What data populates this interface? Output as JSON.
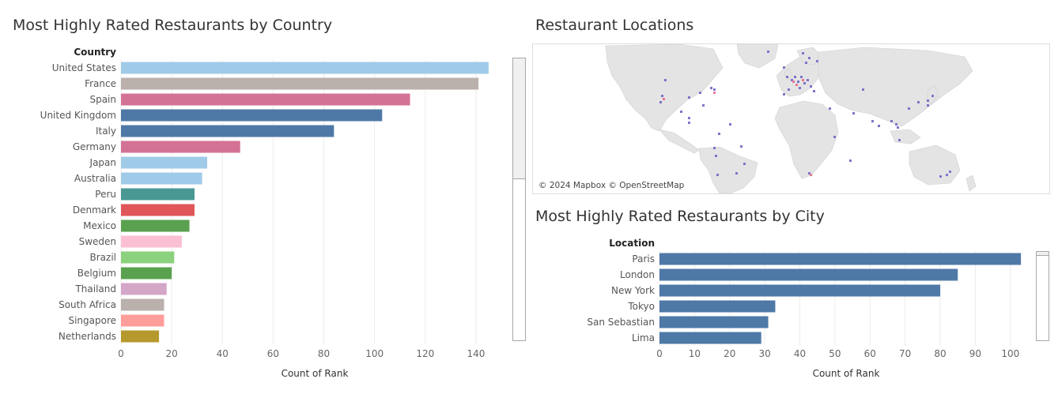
{
  "country_panel": {
    "title": "Most Highly Rated Restaurants by Country"
  },
  "map_panel": {
    "title": "Restaurant Locations",
    "attribution": "© 2024 Mapbox © OpenStreetMap"
  },
  "city_panel": {
    "title": "Most Highly Rated Restaurants by City"
  },
  "chart_data": [
    {
      "type": "bar",
      "orientation": "horizontal",
      "row_header": "Country",
      "xlabel": "Count of Rank",
      "xlim": [
        0,
        150
      ],
      "xticks": [
        0,
        20,
        40,
        60,
        80,
        100,
        120,
        140
      ],
      "grid": true,
      "categories": [
        "United States",
        "France",
        "Spain",
        "United Kingdom",
        "Italy",
        "Germany",
        "Japan",
        "Australia",
        "Peru",
        "Denmark",
        "Mexico",
        "Sweden",
        "Brazil",
        "Belgium",
        "Thailand",
        "South Africa",
        "Singapore",
        "Netherlands"
      ],
      "values": [
        145,
        141,
        114,
        103,
        84,
        47,
        34,
        32,
        29,
        29,
        27,
        24,
        21,
        20,
        18,
        17,
        17,
        15
      ],
      "colors": [
        "#a0cbe8",
        "#bab0ac",
        "#d37295",
        "#4e79a7",
        "#4e79a7",
        "#d37295",
        "#a0cbe8",
        "#a0cbe8",
        "#499894",
        "#e15759",
        "#59a14f",
        "#fabfd2",
        "#8cd17d",
        "#59a14f",
        "#d4a6c8",
        "#bab0ac",
        "#ff9d9a",
        "#b6992d"
      ]
    },
    {
      "type": "bar",
      "orientation": "horizontal",
      "row_header": "Location",
      "xlabel": "Count of Rank",
      "xlim": [
        0,
        105
      ],
      "xticks": [
        0,
        10,
        20,
        30,
        40,
        50,
        60,
        70,
        80,
        90,
        100
      ],
      "grid": true,
      "categories": [
        "Paris",
        "London",
        "New York",
        "Tokyo",
        "San Sebastian",
        "Lima"
      ],
      "values": [
        103,
        85,
        80,
        33,
        31,
        29
      ],
      "colors": [
        "#4e79a7",
        "#4e79a7",
        "#4e79a7",
        "#4e79a7",
        "#4e79a7",
        "#4e79a7"
      ]
    }
  ]
}
